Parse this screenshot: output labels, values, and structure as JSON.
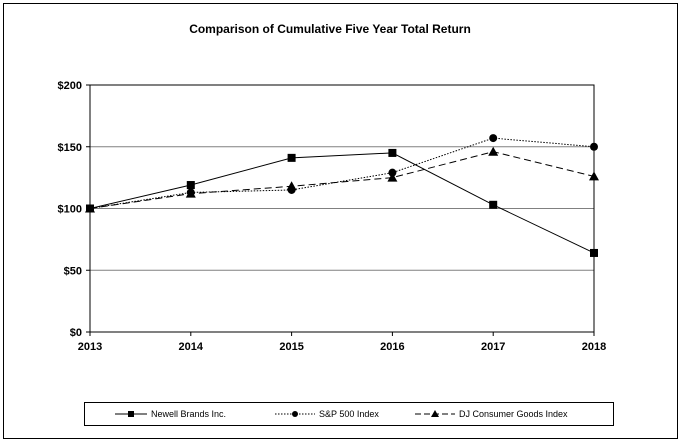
{
  "chart_data": {
    "type": "line",
    "title": "Comparison of Cumulative Five Year Total Return",
    "xlabel": "",
    "ylabel": "",
    "x": [
      "2013",
      "2014",
      "2015",
      "2016",
      "2017",
      "2018"
    ],
    "y_ticks": [
      "$0",
      "$50",
      "$100",
      "$150",
      "$200"
    ],
    "ylim": [
      0,
      200
    ],
    "grid": true,
    "legend_position": "bottom",
    "series": [
      {
        "name": "Newell Brands Inc.",
        "values": [
          100,
          119,
          141,
          145,
          103,
          64
        ],
        "marker": "square",
        "line_style": "solid",
        "color": "#000000"
      },
      {
        "name": "S&P 500 Index",
        "values": [
          100,
          113,
          115,
          129,
          157,
          150
        ],
        "marker": "circle",
        "line_style": "dotted",
        "color": "#000000"
      },
      {
        "name": "DJ Consumer Goods Index",
        "values": [
          100,
          112,
          118,
          125,
          146,
          126
        ],
        "marker": "triangle",
        "line_style": "dashed",
        "color": "#000000"
      }
    ]
  }
}
